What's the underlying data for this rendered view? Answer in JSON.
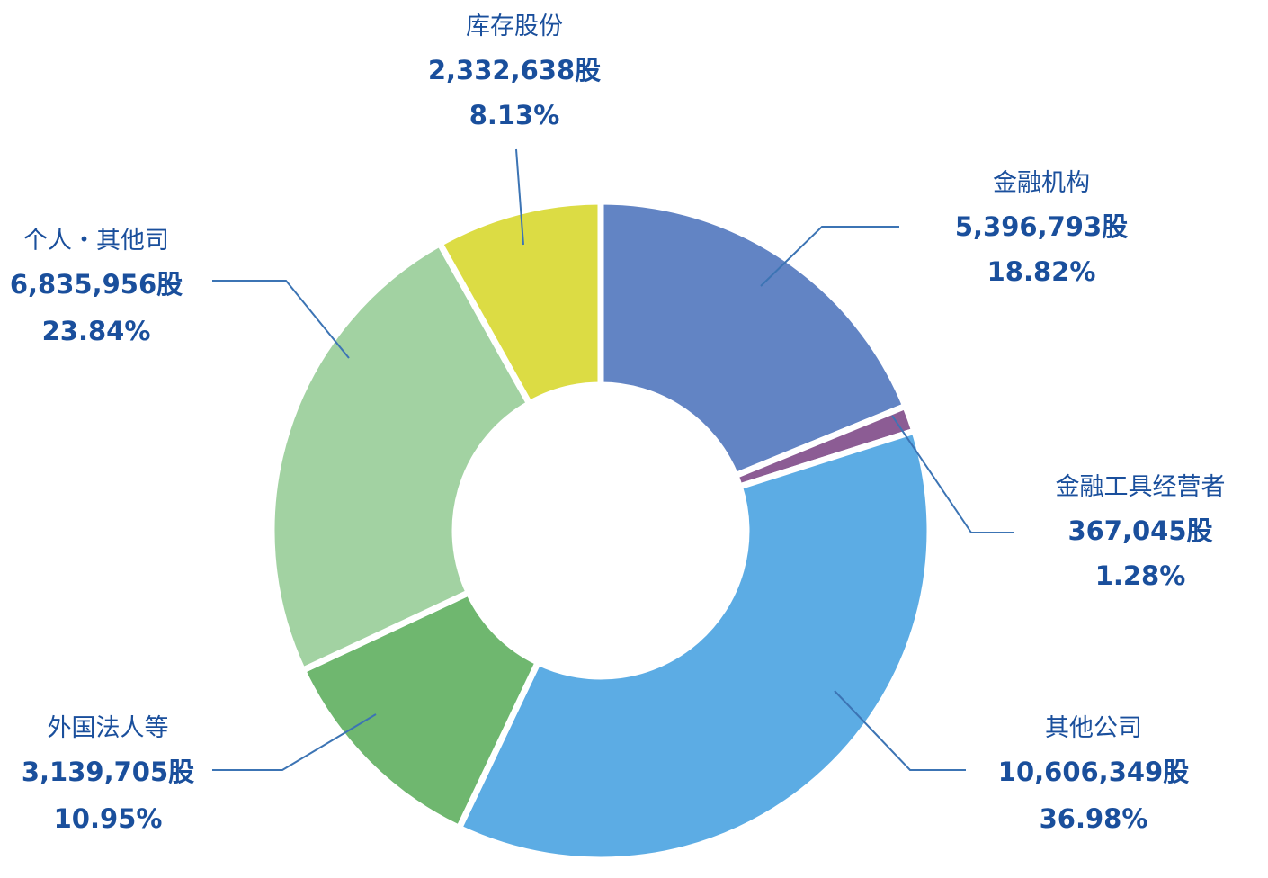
{
  "chart_data": {
    "type": "pie",
    "donut": true,
    "unit_suffix": "股",
    "slices": [
      {
        "name": "金融机构",
        "shares": "5,396,793股",
        "percent": "18.82%",
        "value": 18.82,
        "color": "#6284c4"
      },
      {
        "name": "金融工具经营者",
        "shares": "367,045股",
        "percent": "1.28%",
        "value": 1.28,
        "color": "#8c5c94"
      },
      {
        "name": "其他公司",
        "shares": "10,606,349股",
        "percent": "36.98%",
        "value": 36.98,
        "color": "#5cace4"
      },
      {
        "name": "外国法人等",
        "shares": "3,139,705股",
        "percent": "10.95%",
        "value": 10.95,
        "color": "#6fb76f"
      },
      {
        "name": "个人・其他司",
        "shares": "6,835,956股",
        "percent": "23.84%",
        "value": 23.84,
        "color": "#a2d2a2"
      },
      {
        "name": "库存股份",
        "shares": "2,332,638股",
        "percent": "8.13%",
        "value": 8.13,
        "color": "#dcdc44"
      }
    ],
    "leader_line_color": "#3c74b4"
  }
}
